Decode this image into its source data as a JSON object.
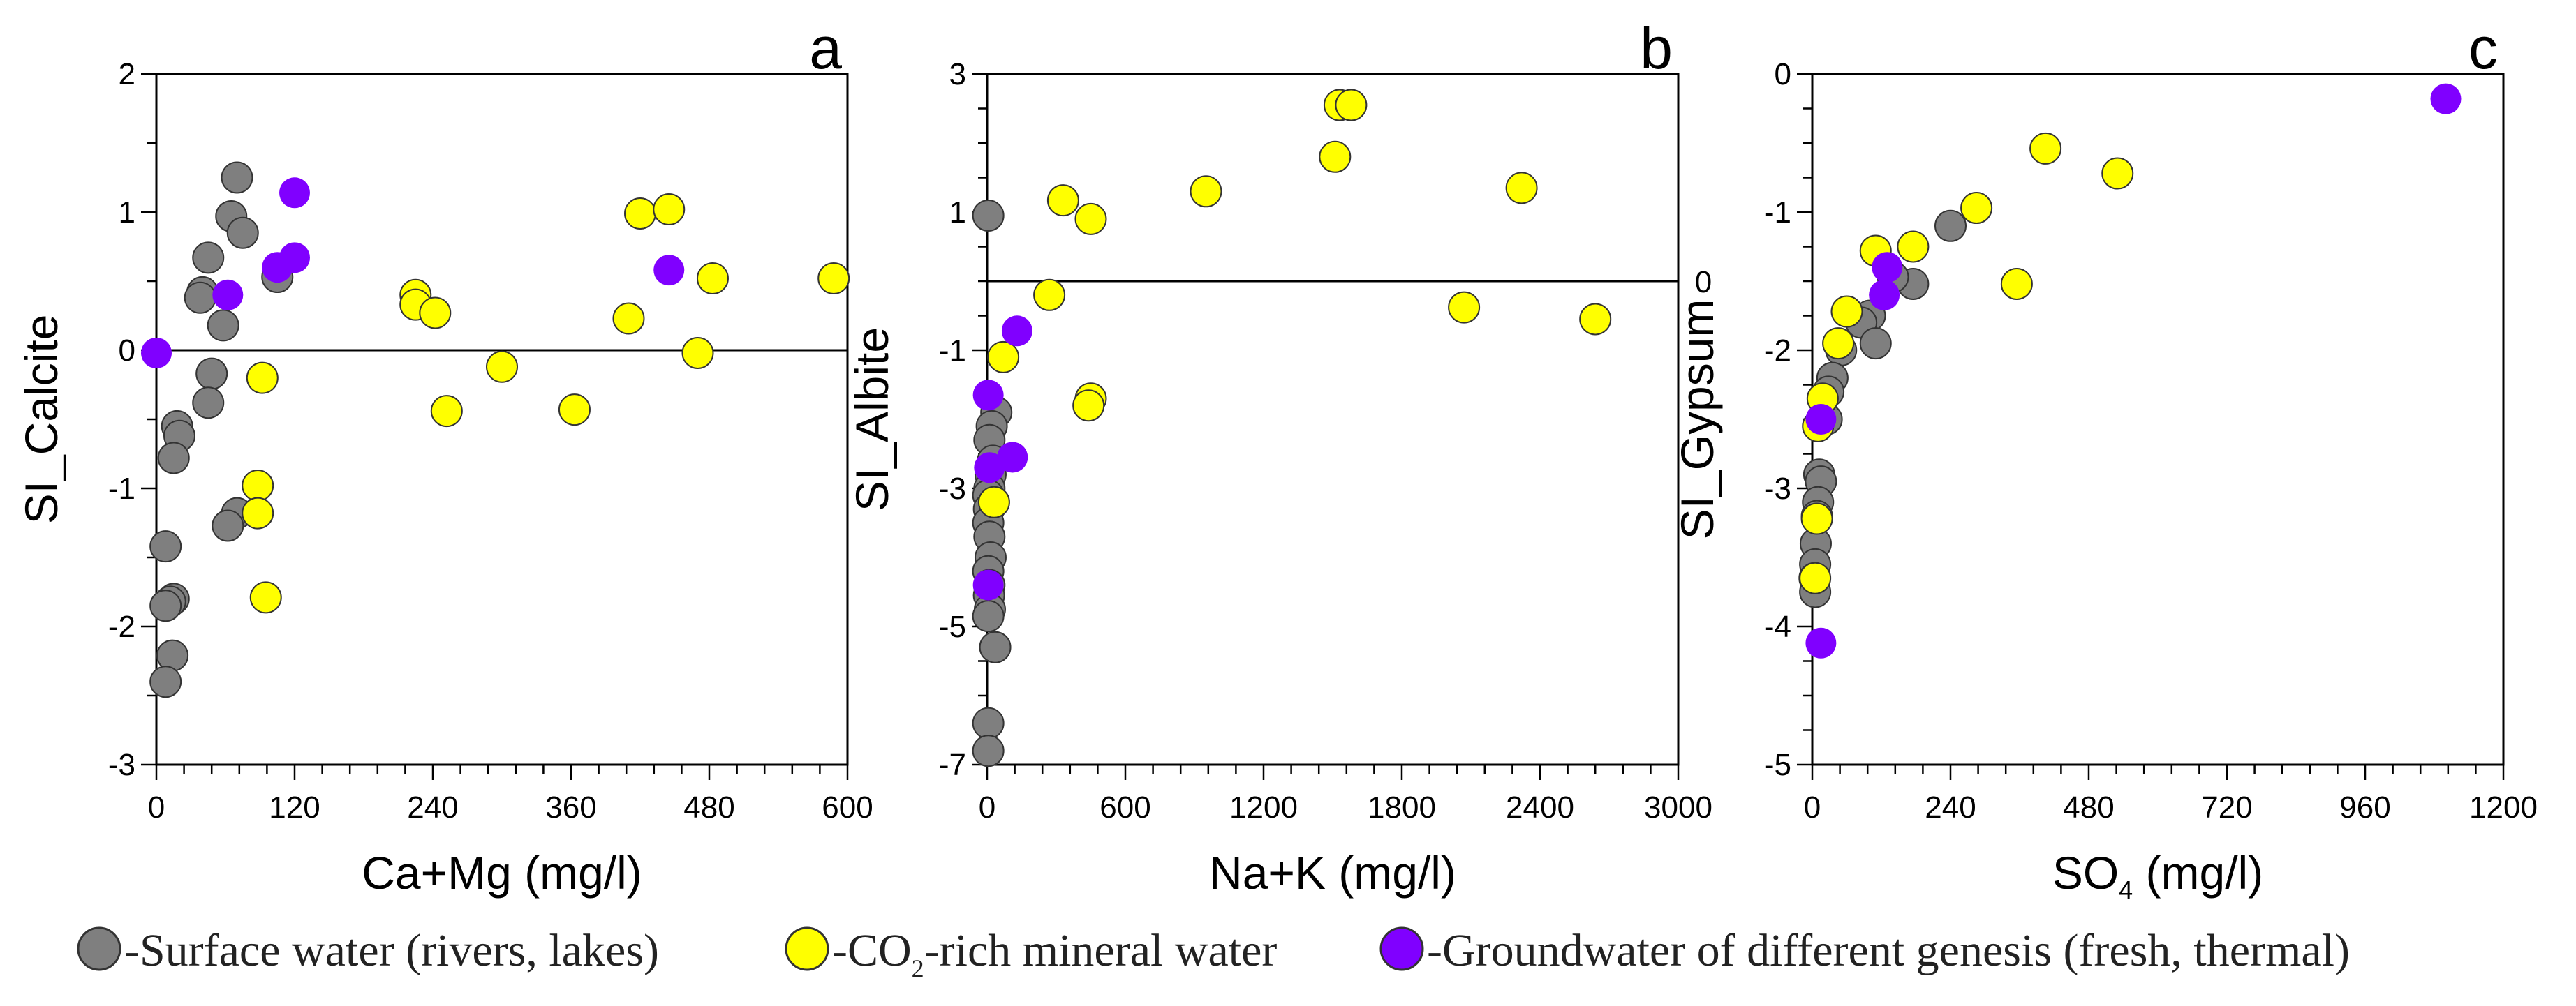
{
  "colors": {
    "surface": "#7f7f7f",
    "co2": "#ffff00",
    "ground": "#8000ff",
    "outline": "#333333"
  },
  "legend": {
    "surface": "-Surface water (rivers, lakes)",
    "co2_pre": "-CO",
    "co2_sub": "2",
    "co2_post": "-rich mineral water",
    "ground": "-Groundwater of different genesis (fresh, thermal)"
  },
  "chart_data": [
    {
      "type": "scatter",
      "panel": "a",
      "xlabel": "Ca+Mg (mg/l)",
      "ylabel": "SI_Calcite",
      "xlim": [
        0,
        600
      ],
      "ylim": [
        -3,
        2
      ],
      "xticks": [
        0,
        120,
        240,
        360,
        480,
        600
      ],
      "yticks": [
        -3,
        -2,
        -1,
        0,
        1,
        2
      ],
      "xminor": 24,
      "yminor": 0.5,
      "refline": {
        "y": 0,
        "label": ""
      },
      "series": [
        {
          "name": "Surface water (rivers, lakes)",
          "color_key": "surface",
          "points": [
            [
              70,
              1.25
            ],
            [
              65,
              0.97
            ],
            [
              75,
              0.85
            ],
            [
              45,
              0.67
            ],
            [
              40,
              0.42
            ],
            [
              38,
              0.38
            ],
            [
              105,
              0.53
            ],
            [
              58,
              0.18
            ],
            [
              48,
              -0.17
            ],
            [
              45,
              -0.38
            ],
            [
              18,
              -0.55
            ],
            [
              20,
              -0.62
            ],
            [
              15,
              -0.78
            ],
            [
              70,
              -1.18
            ],
            [
              62,
              -1.27
            ],
            [
              8,
              -1.42
            ],
            [
              15,
              -1.8
            ],
            [
              12,
              -1.82
            ],
            [
              8,
              -1.85
            ],
            [
              14,
              -2.21
            ],
            [
              8,
              -2.4
            ]
          ]
        },
        {
          "name": "CO2-rich mineral water",
          "color_key": "co2",
          "points": [
            [
              225,
              0.4
            ],
            [
              225,
              0.33
            ],
            [
              242,
              0.27
            ],
            [
              420,
              0.99
            ],
            [
              445,
              1.02
            ],
            [
              483,
              0.52
            ],
            [
              588,
              0.52
            ],
            [
              410,
              0.23
            ],
            [
              470,
              -0.02
            ],
            [
              300,
              -0.12
            ],
            [
              92,
              -0.2
            ],
            [
              252,
              -0.44
            ],
            [
              363,
              -0.43
            ],
            [
              88,
              -0.98
            ],
            [
              88,
              -1.18
            ],
            [
              95,
              -1.79
            ]
          ]
        },
        {
          "name": "Groundwater of different genesis (fresh, thermal)",
          "color_key": "ground",
          "points": [
            [
              0,
              -0.02
            ],
            [
              62,
              0.4
            ],
            [
              120,
              1.14
            ],
            [
              120,
              0.67
            ],
            [
              105,
              0.6
            ],
            [
              445,
              0.58
            ]
          ]
        }
      ]
    },
    {
      "type": "scatter",
      "panel": "b",
      "xlabel": "Na+K (mg/l)",
      "ylabel": "SI_Albite",
      "xlim": [
        0,
        3000
      ],
      "ylim": [
        -7,
        3
      ],
      "xticks": [
        0,
        600,
        1200,
        1800,
        2400,
        3000
      ],
      "yticks": [
        -7,
        -5,
        -3,
        -1,
        1,
        3
      ],
      "xminor": 120,
      "yminor": 0.5,
      "refline": {
        "y": 0,
        "label": "0"
      },
      "series": [
        {
          "name": "Surface water (rivers, lakes)",
          "color_key": "surface",
          "points": [
            [
              5,
              0.95
            ],
            [
              40,
              -1.9
            ],
            [
              20,
              -2.1
            ],
            [
              10,
              -2.3
            ],
            [
              25,
              -2.6
            ],
            [
              15,
              -2.8
            ],
            [
              10,
              -3.0
            ],
            [
              5,
              -3.1
            ],
            [
              8,
              -3.3
            ],
            [
              5,
              -3.5
            ],
            [
              10,
              -3.7
            ],
            [
              15,
              -4.0
            ],
            [
              5,
              -4.2
            ],
            [
              10,
              -4.4
            ],
            [
              8,
              -4.55
            ],
            [
              12,
              -4.75
            ],
            [
              5,
              -4.85
            ],
            [
              35,
              -5.3
            ],
            [
              5,
              -6.4
            ],
            [
              5,
              -6.8
            ]
          ]
        },
        {
          "name": "CO2-rich mineral water",
          "color_key": "co2",
          "points": [
            [
              1530,
              2.55
            ],
            [
              1580,
              2.55
            ],
            [
              1510,
              1.8
            ],
            [
              330,
              1.17
            ],
            [
              950,
              1.3
            ],
            [
              450,
              0.9
            ],
            [
              2320,
              1.35
            ],
            [
              270,
              -0.2
            ],
            [
              2070,
              -0.38
            ],
            [
              2640,
              -0.55
            ],
            [
              70,
              -1.1
            ],
            [
              450,
              -1.7
            ],
            [
              440,
              -1.8
            ],
            [
              30,
              -3.2
            ]
          ]
        },
        {
          "name": "Groundwater of different genesis (fresh, thermal)",
          "color_key": "ground",
          "points": [
            [
              130,
              -0.72
            ],
            [
              5,
              -1.65
            ],
            [
              110,
              -2.55
            ],
            [
              10,
              -2.7
            ],
            [
              5,
              -4.4
            ]
          ]
        }
      ]
    },
    {
      "type": "scatter",
      "panel": "c",
      "xlabel": "SO4 (mg/l)",
      "ylabel": "SI_Gypsum",
      "xlim": [
        0,
        1200
      ],
      "ylim": [
        -5,
        0
      ],
      "xticks": [
        0,
        240,
        480,
        720,
        960,
        1200
      ],
      "yticks": [
        -5,
        -4,
        -3,
        -2,
        -1,
        0
      ],
      "xminor": 48,
      "yminor": 0.25,
      "refline": null,
      "series": [
        {
          "name": "Surface water (rivers, lakes)",
          "color_key": "surface",
          "points": [
            [
              240,
              -1.1
            ],
            [
              175,
              -1.52
            ],
            [
              140,
              -1.47
            ],
            [
              100,
              -1.75
            ],
            [
              85,
              -1.8
            ],
            [
              110,
              -1.95
            ],
            [
              50,
              -2.0
            ],
            [
              35,
              -2.2
            ],
            [
              28,
              -2.3
            ],
            [
              25,
              -2.5
            ],
            [
              12,
              -2.9
            ],
            [
              15,
              -2.95
            ],
            [
              10,
              -3.1
            ],
            [
              8,
              -3.2
            ],
            [
              6,
              -3.4
            ],
            [
              5,
              -3.55
            ],
            [
              4,
              -3.65
            ],
            [
              5,
              -3.75
            ]
          ]
        },
        {
          "name": "CO2-rich mineral water",
          "color_key": "co2",
          "points": [
            [
              405,
              -0.54
            ],
            [
              530,
              -0.72
            ],
            [
              285,
              -0.97
            ],
            [
              110,
              -1.28
            ],
            [
              175,
              -1.25
            ],
            [
              355,
              -1.52
            ],
            [
              60,
              -1.72
            ],
            [
              45,
              -1.95
            ],
            [
              18,
              -2.35
            ],
            [
              10,
              -2.55
            ],
            [
              8,
              -3.22
            ],
            [
              5,
              -3.65
            ]
          ]
        },
        {
          "name": "Groundwater of different genesis (fresh, thermal)",
          "color_key": "ground",
          "points": [
            [
              1100,
              -0.18
            ],
            [
              130,
              -1.4
            ],
            [
              125,
              -1.6
            ],
            [
              15,
              -2.5
            ],
            [
              15,
              -4.12
            ]
          ]
        }
      ]
    }
  ]
}
